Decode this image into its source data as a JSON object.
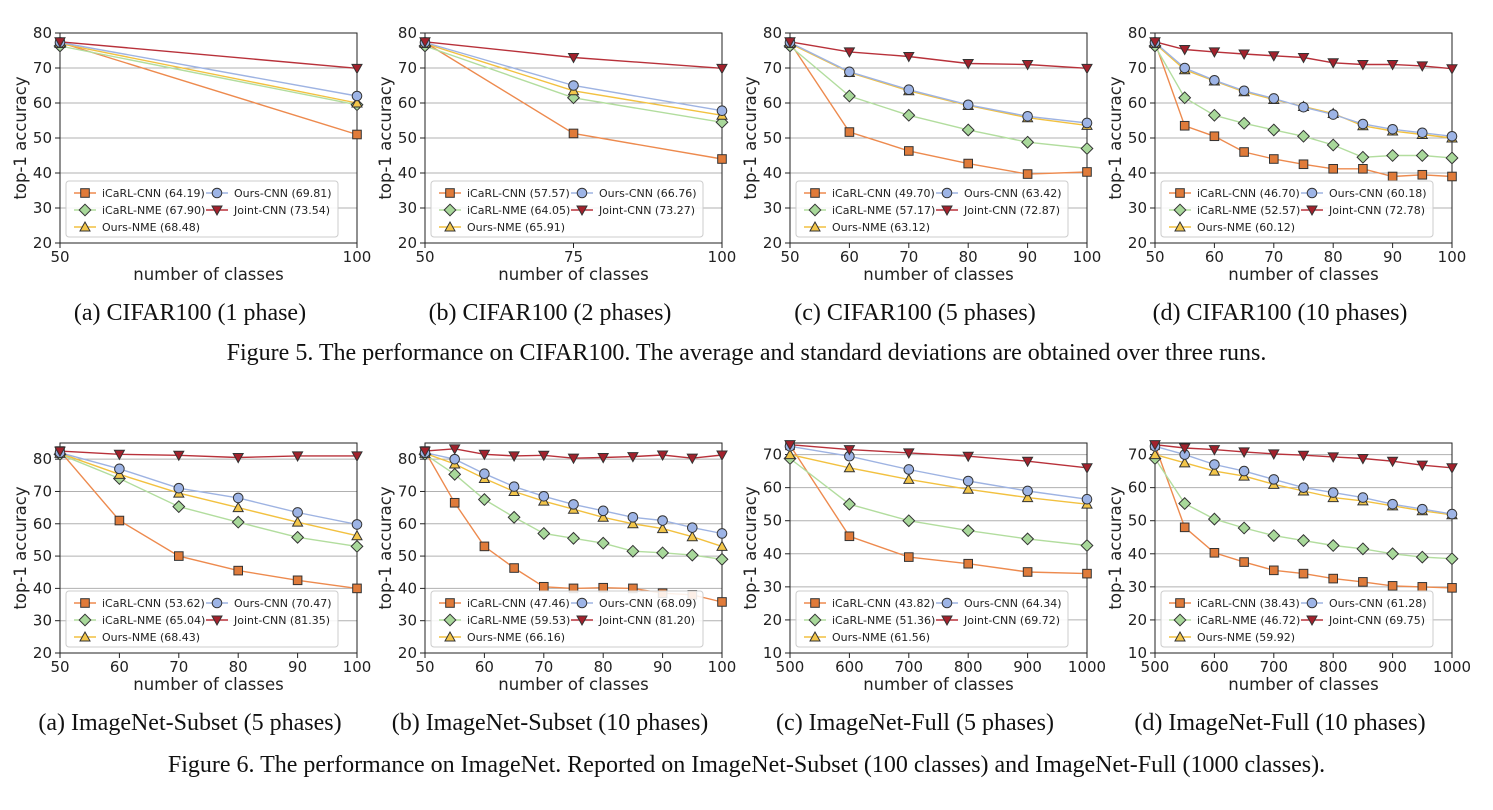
{
  "colors": {
    "icarl_cnn": "#e07b3a",
    "icarl_nme": "#a8d89a",
    "ours_cnn": "#9db4e6",
    "joint_cnn": "#a3212c",
    "ours_nme": "#f3c64a",
    "icarl_cnn_line": "#ed8a4e",
    "icarl_nme_line": "#b2dd9e",
    "ours_cnn_line": "#9eb3e2",
    "joint_cnn_line": "#b8313a",
    "ours_nme_line": "#f2c140"
  },
  "figure5": {
    "caption": "Figure 5. The performance on CIFAR100. The average and standard deviations are obtained over three runs."
  },
  "figure6": {
    "caption": "Figure 6. The performance on ImageNet. Reported on ImageNet-Subset (100 classes) and ImageNet-Full (1000 classes)."
  },
  "chart_data": [
    {
      "type": "line",
      "subcaption": "(a)  CIFAR100 (1 phase)",
      "xlabel": "number of classes",
      "ylabel": "top-1 accuracy",
      "x": [
        50,
        100
      ],
      "xticks": [
        50,
        100
      ],
      "xlim": [
        50,
        100
      ],
      "ylim": [
        20,
        80
      ],
      "yticks": [
        20,
        30,
        40,
        50,
        60,
        70,
        80
      ],
      "legend": [
        "iCaRL-CNN (64.19)",
        "Ours-CNN (69.81)",
        "iCaRL-NME (67.90)",
        "Joint-CNN (73.54)",
        "Ours-NME (68.48)"
      ],
      "series": [
        {
          "key": "icarl_cnn",
          "name": "iCaRL-CNN",
          "values": [
            77.3,
            51.0
          ]
        },
        {
          "key": "icarl_nme",
          "name": "iCaRL-NME",
          "values": [
            76.3,
            59.5
          ]
        },
        {
          "key": "ours_nme",
          "name": "Ours-NME",
          "values": [
            77.0,
            60.0
          ]
        },
        {
          "key": "ours_cnn",
          "name": "Ours-CNN",
          "values": [
            77.3,
            62.0
          ]
        },
        {
          "key": "joint_cnn",
          "name": "Joint-CNN",
          "values": [
            77.5,
            69.9
          ]
        }
      ]
    },
    {
      "type": "line",
      "subcaption": "(b)  CIFAR100 (2 phases)",
      "xlabel": "number of classes",
      "ylabel": "top-1 accuracy",
      "x": [
        50,
        75,
        100
      ],
      "xticks": [
        50,
        75,
        100
      ],
      "xlim": [
        50,
        100
      ],
      "ylim": [
        20,
        80
      ],
      "yticks": [
        20,
        30,
        40,
        50,
        60,
        70,
        80
      ],
      "legend": [
        "iCaRL-CNN (57.57)",
        "Ours-CNN (66.76)",
        "iCaRL-NME (64.05)",
        "Joint-CNN (73.27)",
        "Ours-NME (65.91)"
      ],
      "series": [
        {
          "key": "icarl_cnn",
          "name": "iCaRL-CNN",
          "values": [
            77.3,
            51.3,
            44.0
          ]
        },
        {
          "key": "icarl_nme",
          "name": "iCaRL-NME",
          "values": [
            76.3,
            61.5,
            54.5
          ]
        },
        {
          "key": "ours_nme",
          "name": "Ours-NME",
          "values": [
            77.0,
            63.5,
            56.5
          ]
        },
        {
          "key": "ours_cnn",
          "name": "Ours-CNN",
          "values": [
            77.3,
            65.0,
            57.8
          ]
        },
        {
          "key": "joint_cnn",
          "name": "Joint-CNN",
          "values": [
            77.5,
            73.0,
            69.9
          ]
        }
      ]
    },
    {
      "type": "line",
      "subcaption": "(c)  CIFAR100 (5 phases)",
      "xlabel": "number of classes",
      "ylabel": "top-1 accuracy",
      "x": [
        50,
        60,
        70,
        80,
        90,
        100
      ],
      "xticks": [
        50,
        60,
        70,
        80,
        90,
        100
      ],
      "xlim": [
        50,
        100
      ],
      "ylim": [
        20,
        80
      ],
      "yticks": [
        20,
        30,
        40,
        50,
        60,
        70,
        80
      ],
      "legend": [
        "iCaRL-CNN (49.70)",
        "Ours-CNN (63.42)",
        "iCaRL-NME (57.17)",
        "Joint-CNN (72.87)",
        "Ours-NME (63.12)"
      ],
      "series": [
        {
          "key": "icarl_cnn",
          "name": "iCaRL-CNN",
          "values": [
            77.3,
            51.7,
            46.3,
            42.7,
            39.7,
            40.3
          ]
        },
        {
          "key": "icarl_nme",
          "name": "iCaRL-NME",
          "values": [
            76.3,
            62.0,
            56.5,
            52.3,
            48.8,
            47.0
          ]
        },
        {
          "key": "ours_nme",
          "name": "Ours-NME",
          "values": [
            77.0,
            68.7,
            63.5,
            59.3,
            55.8,
            53.6
          ]
        },
        {
          "key": "ours_cnn",
          "name": "Ours-CNN",
          "values": [
            77.3,
            68.9,
            63.8,
            59.5,
            56.2,
            54.3
          ]
        },
        {
          "key": "joint_cnn",
          "name": "Joint-CNN",
          "values": [
            77.5,
            74.6,
            73.3,
            71.3,
            71.0,
            69.9
          ]
        }
      ]
    },
    {
      "type": "line",
      "subcaption": "(d)  CIFAR100 (10 phases)",
      "xlabel": "number of classes",
      "ylabel": "top-1 accuracy",
      "x": [
        50,
        55,
        60,
        65,
        70,
        75,
        80,
        85,
        90,
        95,
        100
      ],
      "xticks": [
        50,
        60,
        70,
        80,
        90,
        100
      ],
      "xlim": [
        50,
        100
      ],
      "ylim": [
        20,
        80
      ],
      "yticks": [
        20,
        30,
        40,
        50,
        60,
        70,
        80
      ],
      "legend": [
        "iCaRL-CNN (46.70)",
        "Ours-CNN (60.18)",
        "iCaRL-NME (52.57)",
        "Joint-CNN (72.78)",
        "Ours-NME (60.12)"
      ],
      "series": [
        {
          "key": "icarl_cnn",
          "name": "iCaRL-CNN",
          "values": [
            77.3,
            53.5,
            50.5,
            46.0,
            44.0,
            42.5,
            41.2,
            41.2,
            39.0,
            39.5,
            39.0
          ]
        },
        {
          "key": "icarl_nme",
          "name": "iCaRL-NME",
          "values": [
            76.3,
            61.5,
            56.5,
            54.2,
            52.3,
            50.5,
            48.0,
            44.5,
            45.0,
            45.0,
            44.3
          ]
        },
        {
          "key": "ours_nme",
          "name": "Ours-NME",
          "values": [
            77.0,
            69.5,
            66.3,
            63.2,
            61.0,
            59.0,
            57.0,
            53.5,
            52.0,
            51.0,
            50.0
          ]
        },
        {
          "key": "ours_cnn",
          "name": "Ours-CNN",
          "values": [
            77.3,
            70.0,
            66.5,
            63.5,
            61.3,
            58.8,
            56.7,
            54.0,
            52.5,
            51.5,
            50.5
          ]
        },
        {
          "key": "joint_cnn",
          "name": "Joint-CNN",
          "values": [
            77.5,
            75.3,
            74.6,
            74.0,
            73.5,
            73.0,
            71.5,
            71.0,
            71.0,
            70.6,
            69.8
          ]
        }
      ]
    },
    {
      "type": "line",
      "subcaption": "(a)  ImageNet-Subset (5 phases)",
      "xlabel": "number of classes",
      "ylabel": "top-1 accuracy",
      "x": [
        50,
        60,
        70,
        80,
        90,
        100
      ],
      "xticks": [
        50,
        60,
        70,
        80,
        90,
        100
      ],
      "xlim": [
        50,
        100
      ],
      "ylim": [
        20,
        85
      ],
      "yticks": [
        20,
        30,
        40,
        50,
        60,
        70,
        80
      ],
      "legend": [
        "iCaRL-CNN (53.62)",
        "Ours-CNN (70.47)",
        "iCaRL-NME (65.04)",
        "Joint-CNN (81.35)",
        "Ours-NME (68.43)"
      ],
      "series": [
        {
          "key": "icarl_cnn",
          "name": "iCaRL-CNN",
          "values": [
            82.5,
            61.0,
            50.0,
            45.5,
            42.5,
            40.0
          ]
        },
        {
          "key": "icarl_nme",
          "name": "iCaRL-NME",
          "values": [
            81.5,
            74.0,
            65.3,
            60.5,
            55.8,
            53.0
          ]
        },
        {
          "key": "ours_nme",
          "name": "Ours-NME",
          "values": [
            81.8,
            75.3,
            69.5,
            65.0,
            60.5,
            56.3
          ]
        },
        {
          "key": "ours_cnn",
          "name": "Ours-CNN",
          "values": [
            82.0,
            77.0,
            71.0,
            68.0,
            63.5,
            59.8
          ]
        },
        {
          "key": "joint_cnn",
          "name": "Joint-CNN",
          "values": [
            82.5,
            81.5,
            81.2,
            80.5,
            81.0,
            81.0
          ]
        }
      ]
    },
    {
      "type": "line",
      "subcaption": "(b)  ImageNet-Subset (10 phases)",
      "xlabel": "number of classes",
      "ylabel": "top-1 accuracy",
      "x": [
        50,
        55,
        60,
        65,
        70,
        75,
        80,
        85,
        90,
        95,
        100
      ],
      "xticks": [
        50,
        60,
        70,
        80,
        90,
        100
      ],
      "xlim": [
        50,
        100
      ],
      "ylim": [
        20,
        85
      ],
      "yticks": [
        20,
        30,
        40,
        50,
        60,
        70,
        80
      ],
      "legend": [
        "iCaRL-CNN (47.46)",
        "Ours-CNN (68.09)",
        "iCaRL-NME (59.53)",
        "Joint-CNN (81.20)",
        "Ours-NME (66.16)"
      ],
      "series": [
        {
          "key": "icarl_cnn",
          "name": "iCaRL-CNN",
          "values": [
            82.5,
            66.5,
            53.0,
            46.3,
            40.5,
            40.0,
            40.2,
            40.0,
            38.5,
            38.0,
            35.8
          ]
        },
        {
          "key": "icarl_nme",
          "name": "iCaRL-NME",
          "values": [
            81.5,
            75.3,
            67.5,
            62.0,
            57.0,
            55.5,
            54.0,
            51.5,
            51.0,
            50.3,
            49.0
          ]
        },
        {
          "key": "ours_nme",
          "name": "Ours-NME",
          "values": [
            81.8,
            78.5,
            74.0,
            70.0,
            67.0,
            64.5,
            62.0,
            60.0,
            58.5,
            56.0,
            53.0
          ]
        },
        {
          "key": "ours_cnn",
          "name": "Ours-CNN",
          "values": [
            82.0,
            80.0,
            75.5,
            71.5,
            68.5,
            66.0,
            64.0,
            62.0,
            61.0,
            58.8,
            57.0
          ]
        },
        {
          "key": "joint_cnn",
          "name": "Joint-CNN",
          "values": [
            82.5,
            83.2,
            81.5,
            81.0,
            81.2,
            80.3,
            80.5,
            80.8,
            81.3,
            80.3,
            81.3
          ]
        }
      ]
    },
    {
      "type": "line",
      "subcaption": "(c)  ImageNet-Full (5 phases)",
      "xlabel": "number of classes",
      "ylabel": "top-1 accuracy",
      "x": [
        500,
        600,
        700,
        800,
        900,
        1000
      ],
      "xticks": [
        500,
        600,
        700,
        800,
        900,
        1000
      ],
      "xlim": [
        500,
        1000
      ],
      "ylim": [
        10,
        73.5
      ],
      "yticks": [
        10,
        20,
        30,
        40,
        50,
        60,
        70
      ],
      "legend": [
        "iCaRL-CNN (43.82)",
        "Ours-CNN (64.34)",
        "iCaRL-NME (51.36)",
        "Joint-CNN (69.72)",
        "Ours-NME (61.56)"
      ],
      "series": [
        {
          "key": "icarl_cnn",
          "name": "iCaRL-CNN",
          "values": [
            72.8,
            45.3,
            39.0,
            37.0,
            34.5,
            34.0
          ]
        },
        {
          "key": "icarl_nme",
          "name": "iCaRL-NME",
          "values": [
            68.8,
            55.0,
            50.0,
            47.0,
            44.5,
            42.5
          ]
        },
        {
          "key": "ours_nme",
          "name": "Ours-NME",
          "values": [
            70.0,
            66.0,
            62.5,
            59.5,
            57.0,
            55.0
          ]
        },
        {
          "key": "ours_cnn",
          "name": "Ours-CNN",
          "values": [
            72.5,
            69.5,
            65.5,
            62.0,
            59.0,
            56.5
          ]
        },
        {
          "key": "joint_cnn",
          "name": "Joint-CNN",
          "values": [
            73.0,
            71.5,
            70.5,
            69.5,
            68.0,
            66.0
          ]
        }
      ]
    },
    {
      "type": "line",
      "subcaption": "(d)  ImageNet-Full (10 phases)",
      "xlabel": "number of classes",
      "ylabel": "top-1 accuracy",
      "x": [
        500,
        550,
        600,
        650,
        700,
        750,
        800,
        850,
        900,
        950,
        1000
      ],
      "xticks": [
        500,
        600,
        700,
        800,
        900,
        1000
      ],
      "xlim": [
        500,
        1000
      ],
      "ylim": [
        10,
        73.5
      ],
      "yticks": [
        10,
        20,
        30,
        40,
        50,
        60,
        70
      ],
      "legend": [
        "iCaRL-CNN (38.43)",
        "Ours-CNN (61.28)",
        "iCaRL-NME (46.72)",
        "Joint-CNN (69.75)",
        "Ours-NME (59.92)"
      ],
      "series": [
        {
          "key": "icarl_cnn",
          "name": "iCaRL-CNN",
          "values": [
            72.8,
            48.0,
            40.3,
            37.5,
            35.0,
            34.0,
            32.5,
            31.5,
            30.3,
            30.0,
            29.7
          ]
        },
        {
          "key": "icarl_nme",
          "name": "iCaRL-NME",
          "values": [
            68.8,
            55.2,
            50.5,
            47.8,
            45.5,
            44.0,
            42.5,
            41.5,
            40.0,
            39.0,
            38.5
          ]
        },
        {
          "key": "ours_nme",
          "name": "Ours-NME",
          "values": [
            70.0,
            67.5,
            65.0,
            63.5,
            61.0,
            59.0,
            57.0,
            56.0,
            54.5,
            53.0,
            51.8
          ]
        },
        {
          "key": "ours_cnn",
          "name": "Ours-CNN",
          "values": [
            72.5,
            70.0,
            67.0,
            65.0,
            62.5,
            60.0,
            58.5,
            57.0,
            55.0,
            53.5,
            52.0
          ]
        },
        {
          "key": "joint_cnn",
          "name": "Joint-CNN",
          "values": [
            73.0,
            72.0,
            71.5,
            70.8,
            70.2,
            69.8,
            69.3,
            68.8,
            68.0,
            66.8,
            66.0
          ]
        }
      ]
    }
  ]
}
